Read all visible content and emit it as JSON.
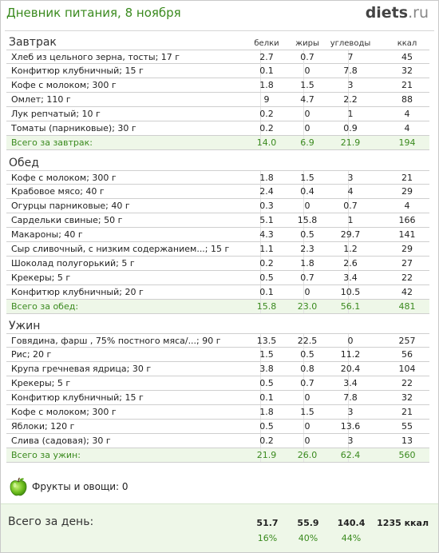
{
  "header": {
    "title": "Дневник питания, 8 ноября",
    "logo_main": "diets",
    "logo_tld": ".ru"
  },
  "columns": {
    "protein": "белки",
    "fat": "жиры",
    "carbs": "углеводы",
    "kcal": "ккал"
  },
  "meals": [
    {
      "title": "Завтрак",
      "rows": [
        {
          "name": "Хлеб из цельного зерна, тосты; 17 г",
          "protein": "2.7",
          "fat": "0.7",
          "carbs": "7",
          "kcal": "45"
        },
        {
          "name": "Конфитюр клубничный; 15 г",
          "protein": "0.1",
          "fat": "0",
          "carbs": "7.8",
          "kcal": "32"
        },
        {
          "name": "Кофе с молоком; 300 г",
          "protein": "1.8",
          "fat": "1.5",
          "carbs": "3",
          "kcal": "21"
        },
        {
          "name": "Омлет; 110 г",
          "protein": "9",
          "fat": "4.7",
          "carbs": "2.2",
          "kcal": "88"
        },
        {
          "name": "Лук репчатый; 10 г",
          "protein": "0.2",
          "fat": "0",
          "carbs": "1",
          "kcal": "4"
        },
        {
          "name": "Томаты (парниковые); 30 г",
          "protein": "0.2",
          "fat": "0",
          "carbs": "0.9",
          "kcal": "4"
        }
      ],
      "total": {
        "name": "Всего за завтрак:",
        "protein": "14.0",
        "fat": "6.9",
        "carbs": "21.9",
        "kcal": "194"
      }
    },
    {
      "title": "Обед",
      "rows": [
        {
          "name": "Кофе с молоком; 300 г",
          "protein": "1.8",
          "fat": "1.5",
          "carbs": "3",
          "kcal": "21"
        },
        {
          "name": "Крабовое мясо; 40 г",
          "protein": "2.4",
          "fat": "0.4",
          "carbs": "4",
          "kcal": "29"
        },
        {
          "name": "Огурцы парниковые; 40 г",
          "protein": "0.3",
          "fat": "0",
          "carbs": "0.7",
          "kcal": "4"
        },
        {
          "name": "Сардельки свиные; 50 г",
          "protein": "5.1",
          "fat": "15.8",
          "carbs": "1",
          "kcal": "166"
        },
        {
          "name": "Макароны; 40 г",
          "protein": "4.3",
          "fat": "0.5",
          "carbs": "29.7",
          "kcal": "141"
        },
        {
          "name": "Сыр сливочный, с низким содержанием...; 15 г",
          "protein": "1.1",
          "fat": "2.3",
          "carbs": "1.2",
          "kcal": "29"
        },
        {
          "name": "Шоколад полугорький; 5 г",
          "protein": "0.2",
          "fat": "1.8",
          "carbs": "2.6",
          "kcal": "27"
        },
        {
          "name": "Крекеры; 5 г",
          "protein": "0.5",
          "fat": "0.7",
          "carbs": "3.4",
          "kcal": "22"
        },
        {
          "name": "Конфитюр клубничный; 20 г",
          "protein": "0.1",
          "fat": "0",
          "carbs": "10.5",
          "kcal": "42"
        }
      ],
      "total": {
        "name": "Всего за обед:",
        "protein": "15.8",
        "fat": "23.0",
        "carbs": "56.1",
        "kcal": "481"
      }
    },
    {
      "title": "Ужин",
      "rows": [
        {
          "name": "Говядина, фарш , 75% постного мяса/...; 90 г",
          "protein": "13.5",
          "fat": "22.5",
          "carbs": "0",
          "kcal": "257"
        },
        {
          "name": "Рис; 20 г",
          "protein": "1.5",
          "fat": "0.5",
          "carbs": "11.2",
          "kcal": "56"
        },
        {
          "name": "Крупа гречневая ядрица; 30 г",
          "protein": "3.8",
          "fat": "0.8",
          "carbs": "20.4",
          "kcal": "104"
        },
        {
          "name": "Крекеры; 5 г",
          "protein": "0.5",
          "fat": "0.7",
          "carbs": "3.4",
          "kcal": "22"
        },
        {
          "name": "Конфитюр клубничный; 15 г",
          "protein": "0.1",
          "fat": "0",
          "carbs": "7.8",
          "kcal": "32"
        },
        {
          "name": "Кофе с молоком; 300 г",
          "protein": "1.8",
          "fat": "1.5",
          "carbs": "3",
          "kcal": "21"
        },
        {
          "name": "Яблоки; 120 г",
          "protein": "0.5",
          "fat": "0",
          "carbs": "13.6",
          "kcal": "55"
        },
        {
          "name": "Слива (садовая); 30 г",
          "protein": "0.2",
          "fat": "0",
          "carbs": "3",
          "kcal": "13"
        }
      ],
      "total": {
        "name": "Всего за ужин:",
        "protein": "21.9",
        "fat": "26.0",
        "carbs": "62.4",
        "kcal": "560"
      }
    }
  ],
  "fruit": {
    "icon": "apple-icon",
    "text": "Фрукты и овощи: 0"
  },
  "day": {
    "label": "Всего за день:",
    "protein": "51.7",
    "fat": "55.9",
    "carbs": "140.4",
    "kcal": "1235 ккал",
    "protein_pct": "16%",
    "fat_pct": "40%",
    "carbs_pct": "44%"
  },
  "colors": {
    "accent_green": "#3a8a1e",
    "total_bg": "#eef7e8",
    "border": "#cfcfcf"
  }
}
